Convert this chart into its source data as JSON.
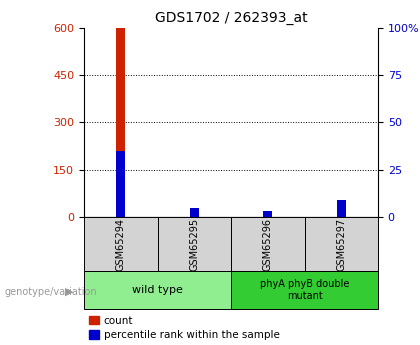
{
  "title": "GDS1702 / 262393_at",
  "samples": [
    "GSM65294",
    "GSM65295",
    "GSM65296",
    "GSM65297"
  ],
  "count_values": [
    600,
    10,
    5,
    18
  ],
  "percentile_values": [
    210,
    30,
    21,
    55
  ],
  "left_ylim": [
    0,
    600
  ],
  "left_yticks": [
    0,
    150,
    300,
    450,
    600
  ],
  "right_ylim": [
    0,
    100
  ],
  "right_yticks": [
    0,
    25,
    50,
    75,
    100
  ],
  "bar_width": 0.12,
  "count_color": "#cc2200",
  "percentile_color": "#0000cc",
  "label_box_color": "#d3d3d3",
  "wt_color": "#90ee90",
  "mutant_color": "#33cc33",
  "annotation_color": "#999999",
  "legend_count": "count",
  "legend_percentile": "percentile rank within the sample",
  "background_color": "#ffffff",
  "gridline_yticks": [
    150,
    300,
    450
  ]
}
